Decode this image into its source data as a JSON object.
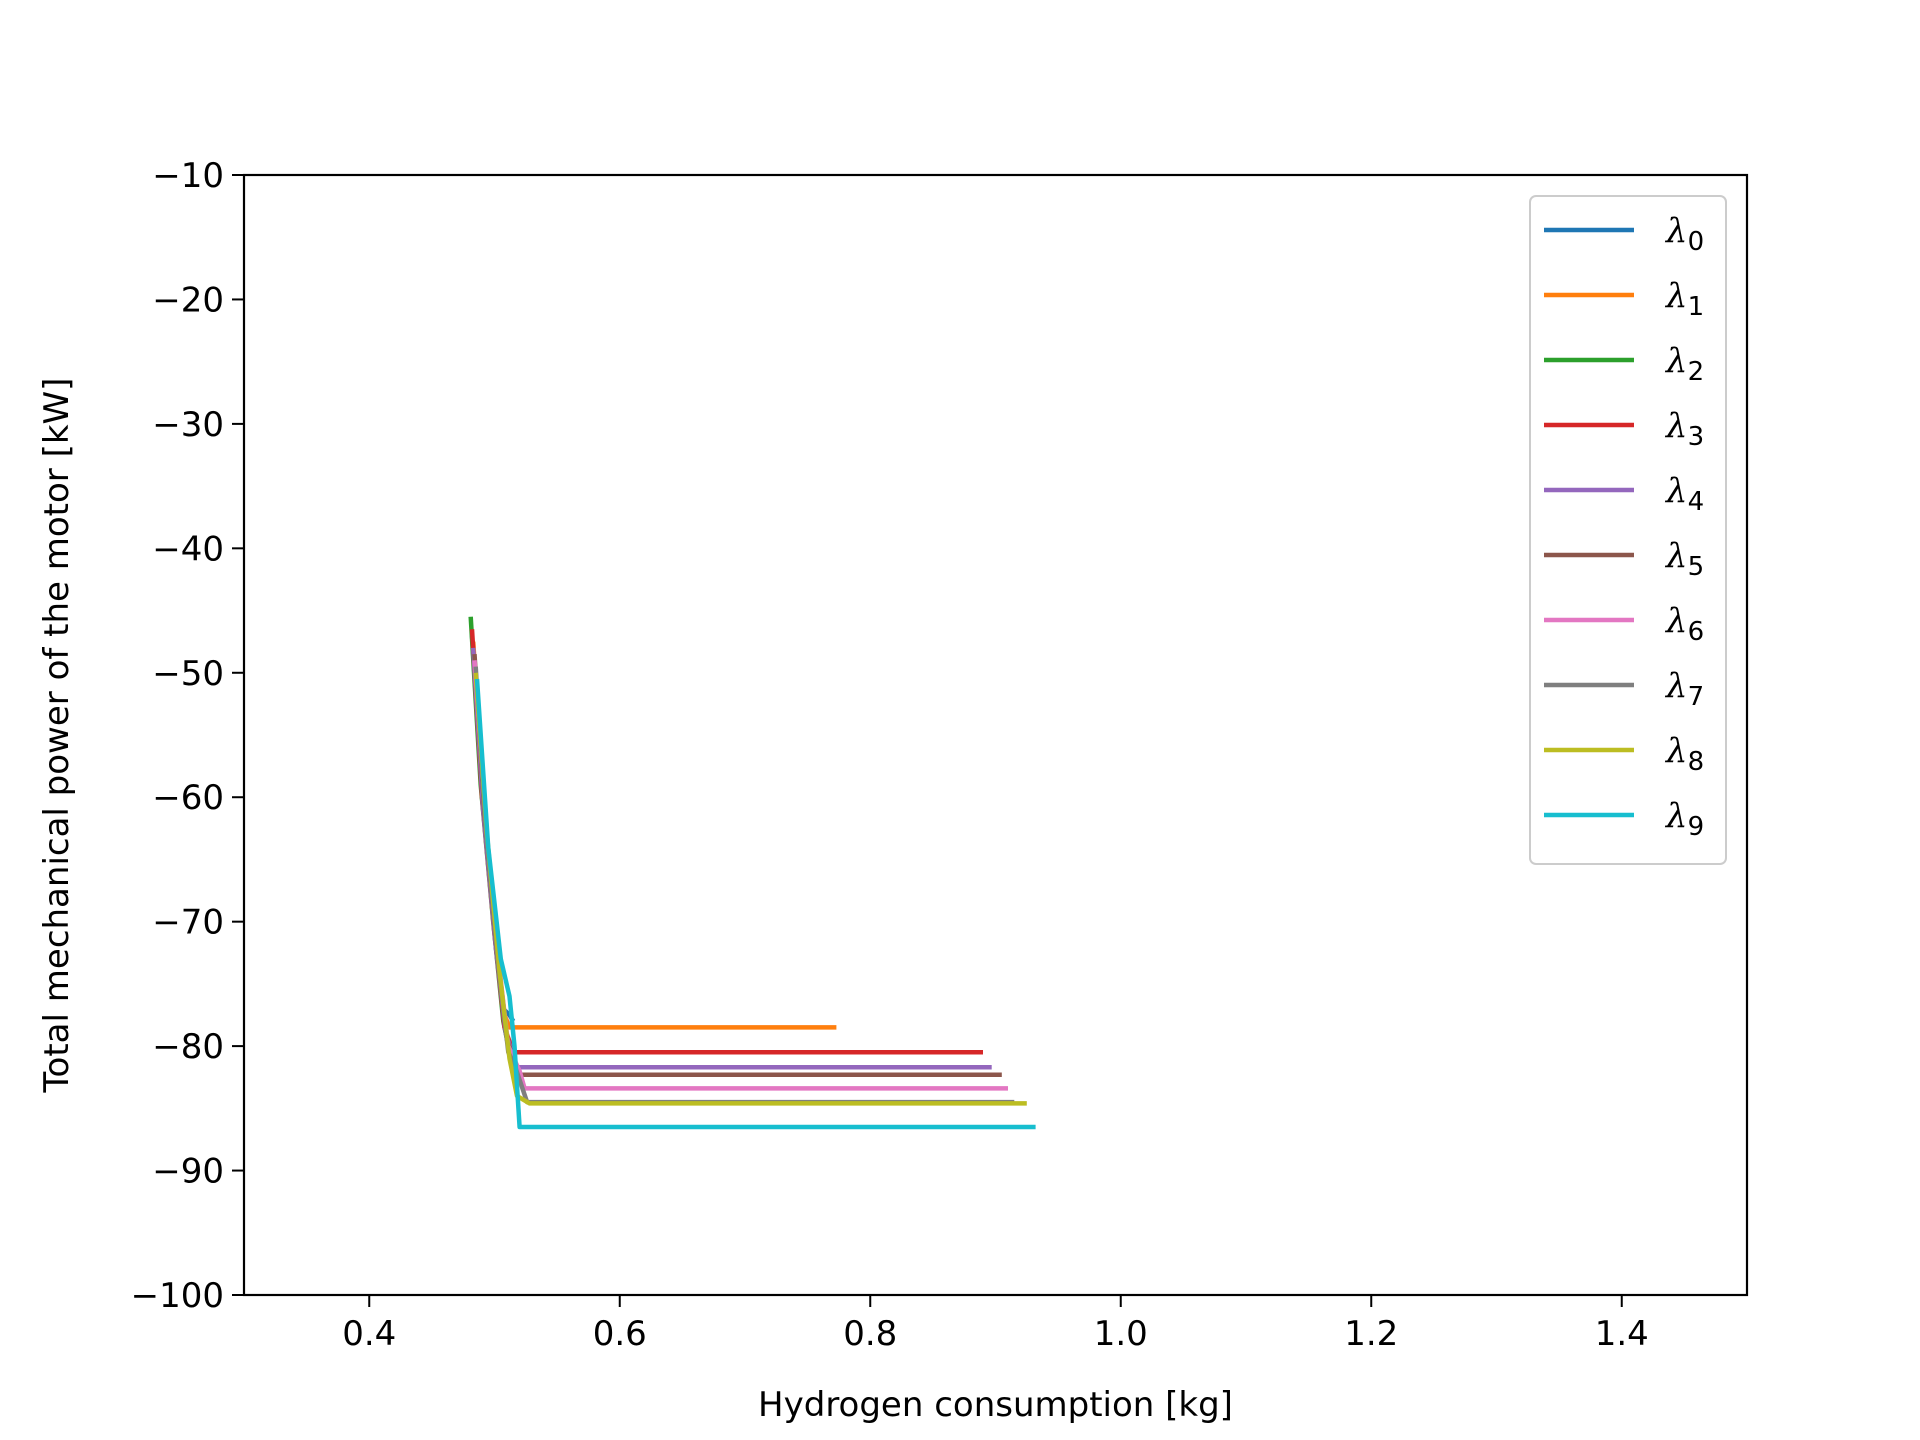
{
  "chart_data": {
    "type": "line",
    "title": "",
    "xlabel": "Hydrogen consumption [kg]",
    "ylabel": "Total mechanical power of the motor [kW]",
    "xlim": [
      0.3,
      1.5
    ],
    "ylim": [
      -100,
      -10
    ],
    "x_ticks": [
      0.4,
      0.6,
      0.8,
      1.0,
      1.2,
      1.4
    ],
    "x_tick_labels": [
      "0.4",
      "0.6",
      "0.8",
      "1.0",
      "1.2",
      "1.4"
    ],
    "y_ticks": [
      -10,
      -20,
      -30,
      -40,
      -50,
      -60,
      -70,
      -80,
      -90,
      -100
    ],
    "y_tick_labels": [
      "−10",
      "−20",
      "−30",
      "−40",
      "−50",
      "−60",
      "−70",
      "−80",
      "−90",
      "−100"
    ],
    "grid": false,
    "legend_position": "top-right",
    "series": [
      {
        "name": "λ",
        "sub": "0",
        "color": "#1f77b4",
        "x": [
          0.482,
          0.49,
          0.5,
          0.507,
          0.512,
          0.515
        ],
        "y": [
          -47,
          -60,
          -70,
          -77,
          -77.5,
          -78
        ]
      },
      {
        "name": "λ",
        "sub": "1",
        "color": "#ff7f0e",
        "x": [
          0.483,
          0.492,
          0.502,
          0.508,
          0.512,
          0.773
        ],
        "y": [
          -47.5,
          -61,
          -72,
          -77.5,
          -78.5,
          -78.5
        ]
      },
      {
        "name": "λ",
        "sub": "2",
        "color": "#2ca02c",
        "x": [
          0.481,
          0.489,
          0.499,
          0.507,
          0.511
        ],
        "y": [
          -45.5,
          -59,
          -70,
          -78,
          -80
        ]
      },
      {
        "name": "λ",
        "sub": "3",
        "color": "#d62728",
        "x": [
          0.482,
          0.49,
          0.5,
          0.508,
          0.515,
          0.89
        ],
        "y": [
          -46.5,
          -60,
          -71,
          -78.5,
          -80.5,
          -80.5
        ]
      },
      {
        "name": "λ",
        "sub": "4",
        "color": "#9467bd",
        "x": [
          0.483,
          0.491,
          0.501,
          0.509,
          0.518,
          0.897
        ],
        "y": [
          -48,
          -61,
          -72,
          -79,
          -81.7,
          -81.7
        ]
      },
      {
        "name": "λ",
        "sub": "5",
        "color": "#8c564b",
        "x": [
          0.484,
          0.492,
          0.502,
          0.51,
          0.52,
          0.905
        ],
        "y": [
          -48.5,
          -61.5,
          -72.5,
          -79.5,
          -82.3,
          -82.3
        ]
      },
      {
        "name": "λ",
        "sub": "6",
        "color": "#e377c2",
        "x": [
          0.484,
          0.493,
          0.503,
          0.511,
          0.52,
          0.524,
          0.91
        ],
        "y": [
          -49,
          -62,
          -73,
          -80,
          -82,
          -83.4,
          -83.4
        ]
      },
      {
        "name": "λ",
        "sub": "7",
        "color": "#7f7f7f",
        "x": [
          0.485,
          0.493,
          0.503,
          0.511,
          0.516,
          0.526,
          0.915
        ],
        "y": [
          -49.5,
          -62.5,
          -73.5,
          -80.5,
          -81.5,
          -84.5,
          -84.5
        ]
      },
      {
        "name": "λ",
        "sub": "8",
        "color": "#bcbd22",
        "x": [
          0.485,
          0.494,
          0.504,
          0.512,
          0.518,
          0.528,
          0.925
        ],
        "y": [
          -50,
          -63,
          -74,
          -81,
          -84,
          -84.6,
          -84.6
        ]
      },
      {
        "name": "λ",
        "sub": "9",
        "color": "#17becf",
        "x": [
          0.486,
          0.495,
          0.505,
          0.512,
          0.516,
          0.52,
          0.932
        ],
        "y": [
          -50.5,
          -64,
          -73,
          -76,
          -80,
          -86.5,
          -86.5
        ]
      }
    ]
  }
}
